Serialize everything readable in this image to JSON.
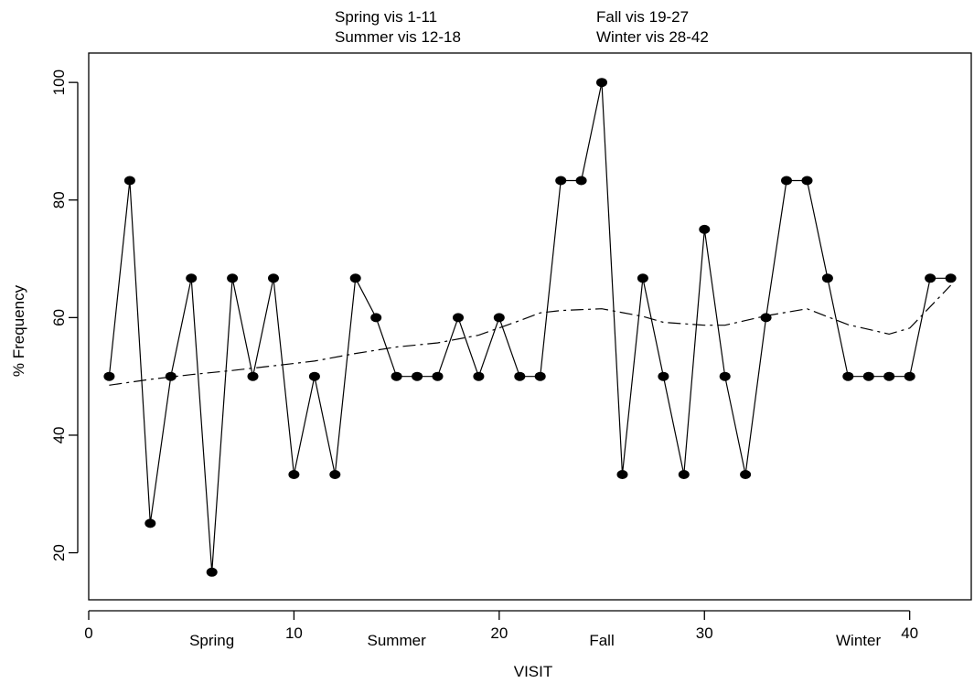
{
  "chart_data": {
    "type": "line",
    "xlabel": "VISIT",
    "ylabel": "% Frequency",
    "xlim": [
      0,
      43
    ],
    "ylim": [
      12,
      105
    ],
    "x_ticks": [
      0,
      10,
      20,
      30,
      40
    ],
    "y_ticks": [
      20,
      40,
      60,
      80,
      100
    ],
    "grid": false,
    "legend_lines": [
      "Spring vis 1-11",
      "Summer vis 12-18",
      "Fall vis 19-27",
      "Winter vis 28-42"
    ],
    "season_labels": [
      {
        "text": "Spring",
        "x": 6
      },
      {
        "text": "Summer",
        "x": 15
      },
      {
        "text": "Fall",
        "x": 25
      },
      {
        "text": "Winter",
        "x": 37.5
      }
    ],
    "series": [
      {
        "style": "solid line with filled circle markers",
        "x": [
          1,
          2,
          3,
          4,
          5,
          6,
          7,
          8,
          9,
          10,
          11,
          12,
          13,
          14,
          15,
          16,
          17,
          18,
          19,
          20,
          21,
          22,
          23,
          24,
          25,
          26,
          27,
          28,
          29,
          30,
          31,
          32,
          33,
          34,
          35,
          36,
          37,
          38,
          39,
          40,
          41,
          42
        ],
        "y": [
          50,
          83.3,
          25,
          50,
          66.7,
          16.7,
          66.7,
          50,
          66.7,
          33.3,
          50,
          33.3,
          66.7,
          60,
          50,
          50,
          50,
          60,
          50,
          60,
          50,
          50,
          83.3,
          83.3,
          100,
          33.3,
          66.7,
          50,
          33.3,
          75,
          50,
          33.3,
          60,
          83.3,
          83.3,
          66.7,
          50,
          50,
          50,
          50,
          66.7,
          66.7
        ]
      },
      {
        "style": "dashed smooth trend line",
        "x": [
          1,
          3,
          5,
          7,
          9,
          11,
          13,
          15,
          17,
          19,
          21,
          22,
          23,
          25,
          27,
          28,
          30,
          31,
          33,
          35,
          37,
          39,
          40,
          42
        ],
        "y": [
          48.5,
          49.5,
          50.3,
          51,
          51.8,
          52.6,
          53.9,
          55,
          55.7,
          57,
          59.5,
          60.8,
          61.2,
          61.5,
          60.2,
          59.2,
          58.7,
          58.7,
          60.3,
          61.5,
          58.8,
          57.2,
          58.2,
          65.5
        ]
      }
    ]
  },
  "colors": {
    "line": "#000000",
    "marker": "#000000",
    "background": "#ffffff"
  }
}
